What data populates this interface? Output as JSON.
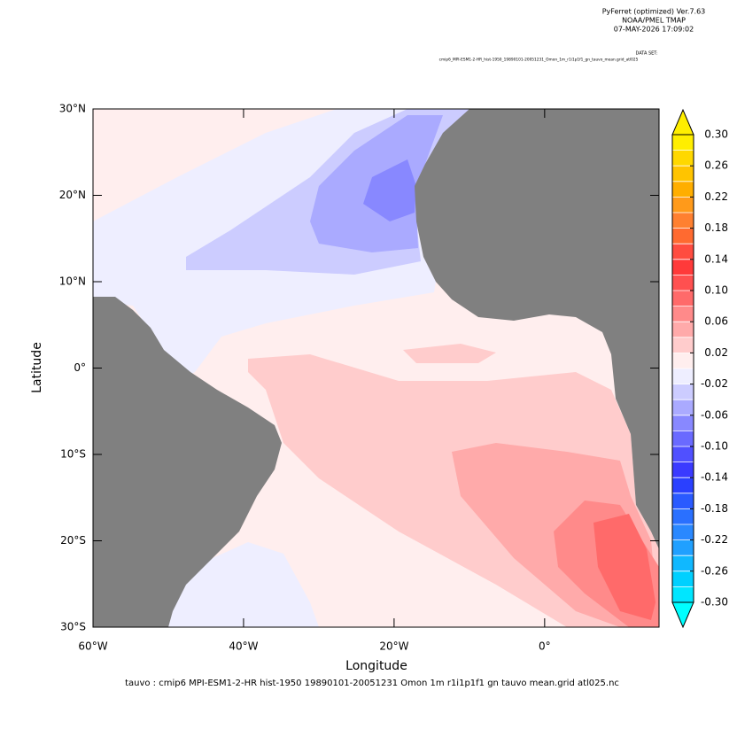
{
  "header": {
    "lines": [
      "PyFerret (optimized) Ver.7.63",
      "NOAA/PMEL TMAP",
      "07-MAY-2026 17:09:02"
    ],
    "dataset_label": "DATA SET:",
    "dataset": "cmip6_MPI-ESM1-2-HR_hist-1950_19890101-20051231_Omon_1m_r1i1p1f1_gn_tauvo_mean.grid_atl025"
  },
  "map": {
    "xlabel": "Longitude",
    "ylabel": "Latitude",
    "xlim": [
      -60,
      15.2
    ],
    "ylim": [
      -30,
      30
    ],
    "xticks": [
      {
        "value": -60,
        "label": "60°W"
      },
      {
        "value": -40,
        "label": "40°W"
      },
      {
        "value": -20,
        "label": "20°W"
      },
      {
        "value": 0,
        "label": "0°"
      }
    ],
    "yticks": [
      {
        "value": 30,
        "label": "30°N"
      },
      {
        "value": 20,
        "label": "20°N"
      },
      {
        "value": 10,
        "label": "10°N"
      },
      {
        "value": 0,
        "label": "0°"
      },
      {
        "value": -10,
        "label": "10°S"
      },
      {
        "value": -20,
        "label": "20°S"
      },
      {
        "value": -30,
        "label": "30°S"
      }
    ],
    "land_color": "#808080",
    "caption": "tauvo : cmip6 MPI-ESM1-2-HR hist-1950 19890101-20051231 Omon 1m r1i1p1f1 gn tauvo mean.grid atl025.nc"
  },
  "colorbar": {
    "lim": [
      -0.3,
      0.3
    ],
    "ticks": [
      {
        "value": 0.3,
        "label": "0.30"
      },
      {
        "value": 0.26,
        "label": "0.26"
      },
      {
        "value": 0.22,
        "label": "0.22"
      },
      {
        "value": 0.18,
        "label": "0.18"
      },
      {
        "value": 0.14,
        "label": "0.14"
      },
      {
        "value": 0.1,
        "label": "0.10"
      },
      {
        "value": 0.06,
        "label": "0.06"
      },
      {
        "value": 0.02,
        "label": "0.02"
      },
      {
        "value": -0.02,
        "label": "-0.02"
      },
      {
        "value": -0.06,
        "label": "-0.06"
      },
      {
        "value": -0.1,
        "label": "-0.10"
      },
      {
        "value": -0.14,
        "label": "-0.14"
      },
      {
        "value": -0.18,
        "label": "-0.18"
      },
      {
        "value": -0.22,
        "label": "-0.22"
      },
      {
        "value": -0.26,
        "label": "-0.26"
      },
      {
        "value": -0.3,
        "label": "-0.30"
      }
    ],
    "colors": [
      "#00e6ff",
      "#00d0ff",
      "#10b8ff",
      "#20a0ff",
      "#2a88ff",
      "#2a70ff",
      "#2a5aff",
      "#2a40ff",
      "#3a3aff",
      "#5050ff",
      "#6a6aff",
      "#8888ff",
      "#aaaaff",
      "#ccccff",
      "#eeeeff",
      "#ffeeee",
      "#ffcccc",
      "#ffaaaa",
      "#ff8a8a",
      "#ff6a6a",
      "#ff5050",
      "#ff3a3a",
      "#ff4c40",
      "#ff6a30",
      "#ff8030",
      "#ff9a1a",
      "#ffae00",
      "#ffc400",
      "#ffd800",
      "#ffee00"
    ],
    "under_color": "#00ffff",
    "over_color": "#ffee00"
  }
}
